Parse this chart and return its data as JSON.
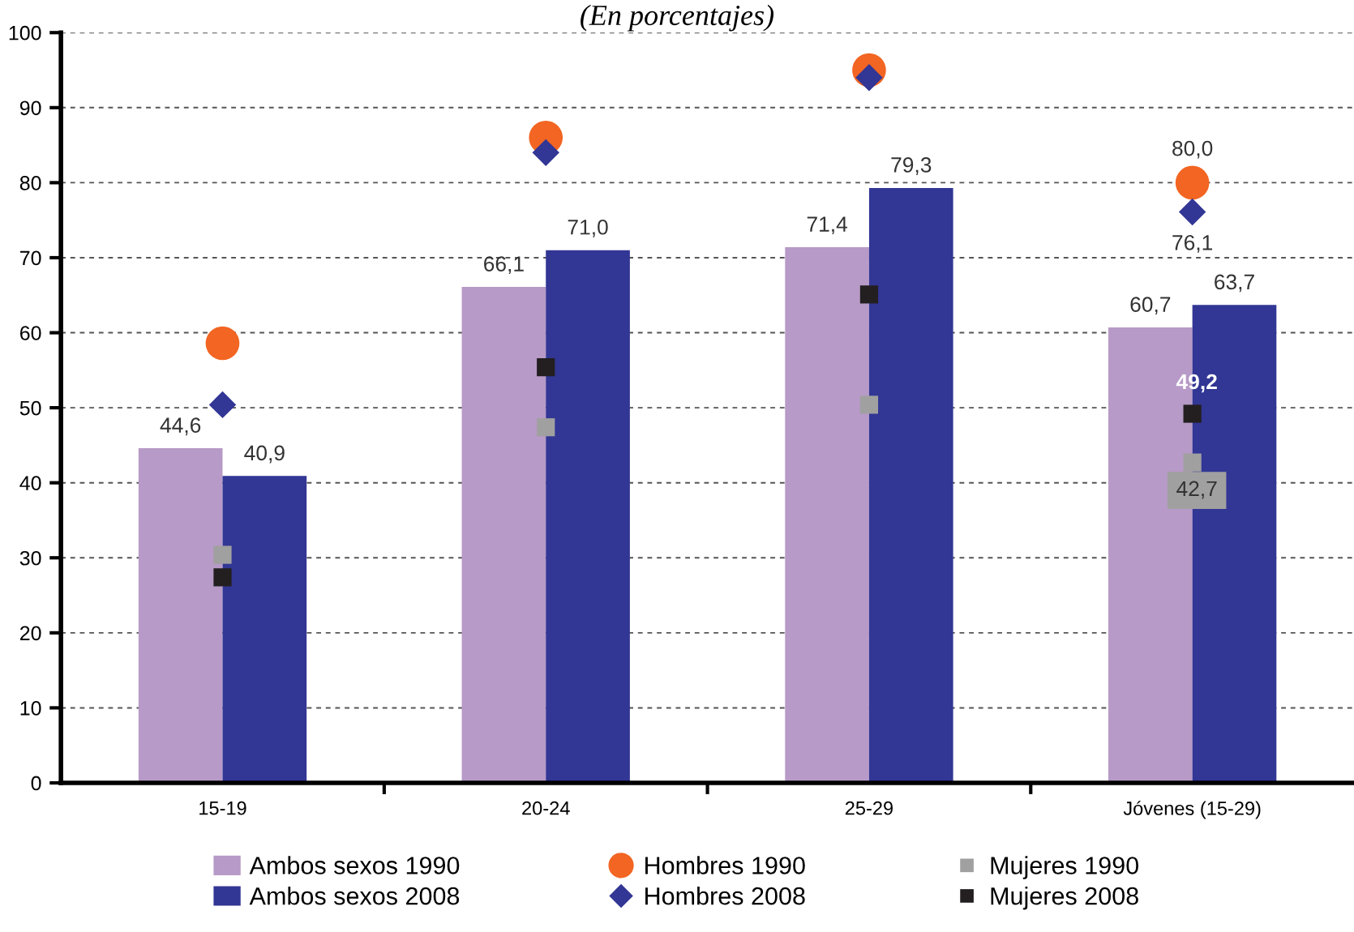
{
  "chart_data": {
    "type": "bar",
    "subtitle": "(En porcentajes)",
    "categories": [
      "15-19",
      "20-24",
      "25-29",
      "Jóvenes (15-29)"
    ],
    "series": [
      {
        "name": "Ambos sexos 1990",
        "color": "#b79ac7",
        "values": [
          44.6,
          66.1,
          71.4,
          60.7
        ],
        "value_labels": [
          "44,6",
          "66,1",
          "71,4",
          "60,7"
        ]
      },
      {
        "name": "Ambos sexos 2008",
        "color": "#323694",
        "values": [
          40.9,
          71.0,
          79.3,
          63.7
        ],
        "value_labels": [
          "40,9",
          "71,0",
          "79,3",
          "63,7"
        ]
      },
      {
        "name": "Hombres 1990",
        "type": "scatter",
        "marker": "circle",
        "color": "#f26522",
        "values": [
          58.6,
          86.0,
          95.0,
          80.0
        ],
        "value_labels": [
          null,
          null,
          null,
          "80,0"
        ]
      },
      {
        "name": "Hombres 2008",
        "type": "scatter",
        "marker": "diamond",
        "color": "#323694",
        "values": [
          50.4,
          84.0,
          94.0,
          76.1
        ],
        "value_labels": [
          null,
          null,
          null,
          "76,1"
        ]
      },
      {
        "name": "Mujeres 1990",
        "type": "scatter",
        "marker": "square",
        "color": "#a0a0a0",
        "values": [
          30.4,
          47.4,
          50.4,
          42.7
        ],
        "value_labels": [
          null,
          null,
          null,
          "42,7"
        ]
      },
      {
        "name": "Mujeres 2008",
        "type": "scatter",
        "marker": "square",
        "color": "#231f20",
        "values": [
          27.4,
          55.4,
          65.1,
          49.2
        ],
        "value_labels": [
          null,
          null,
          null,
          "49,2"
        ]
      }
    ],
    "ylim": [
      0,
      100
    ],
    "yticks": [
      0,
      10,
      20,
      30,
      40,
      50,
      60,
      70,
      80,
      90,
      100
    ],
    "grid": "y",
    "legend": "bottom"
  }
}
